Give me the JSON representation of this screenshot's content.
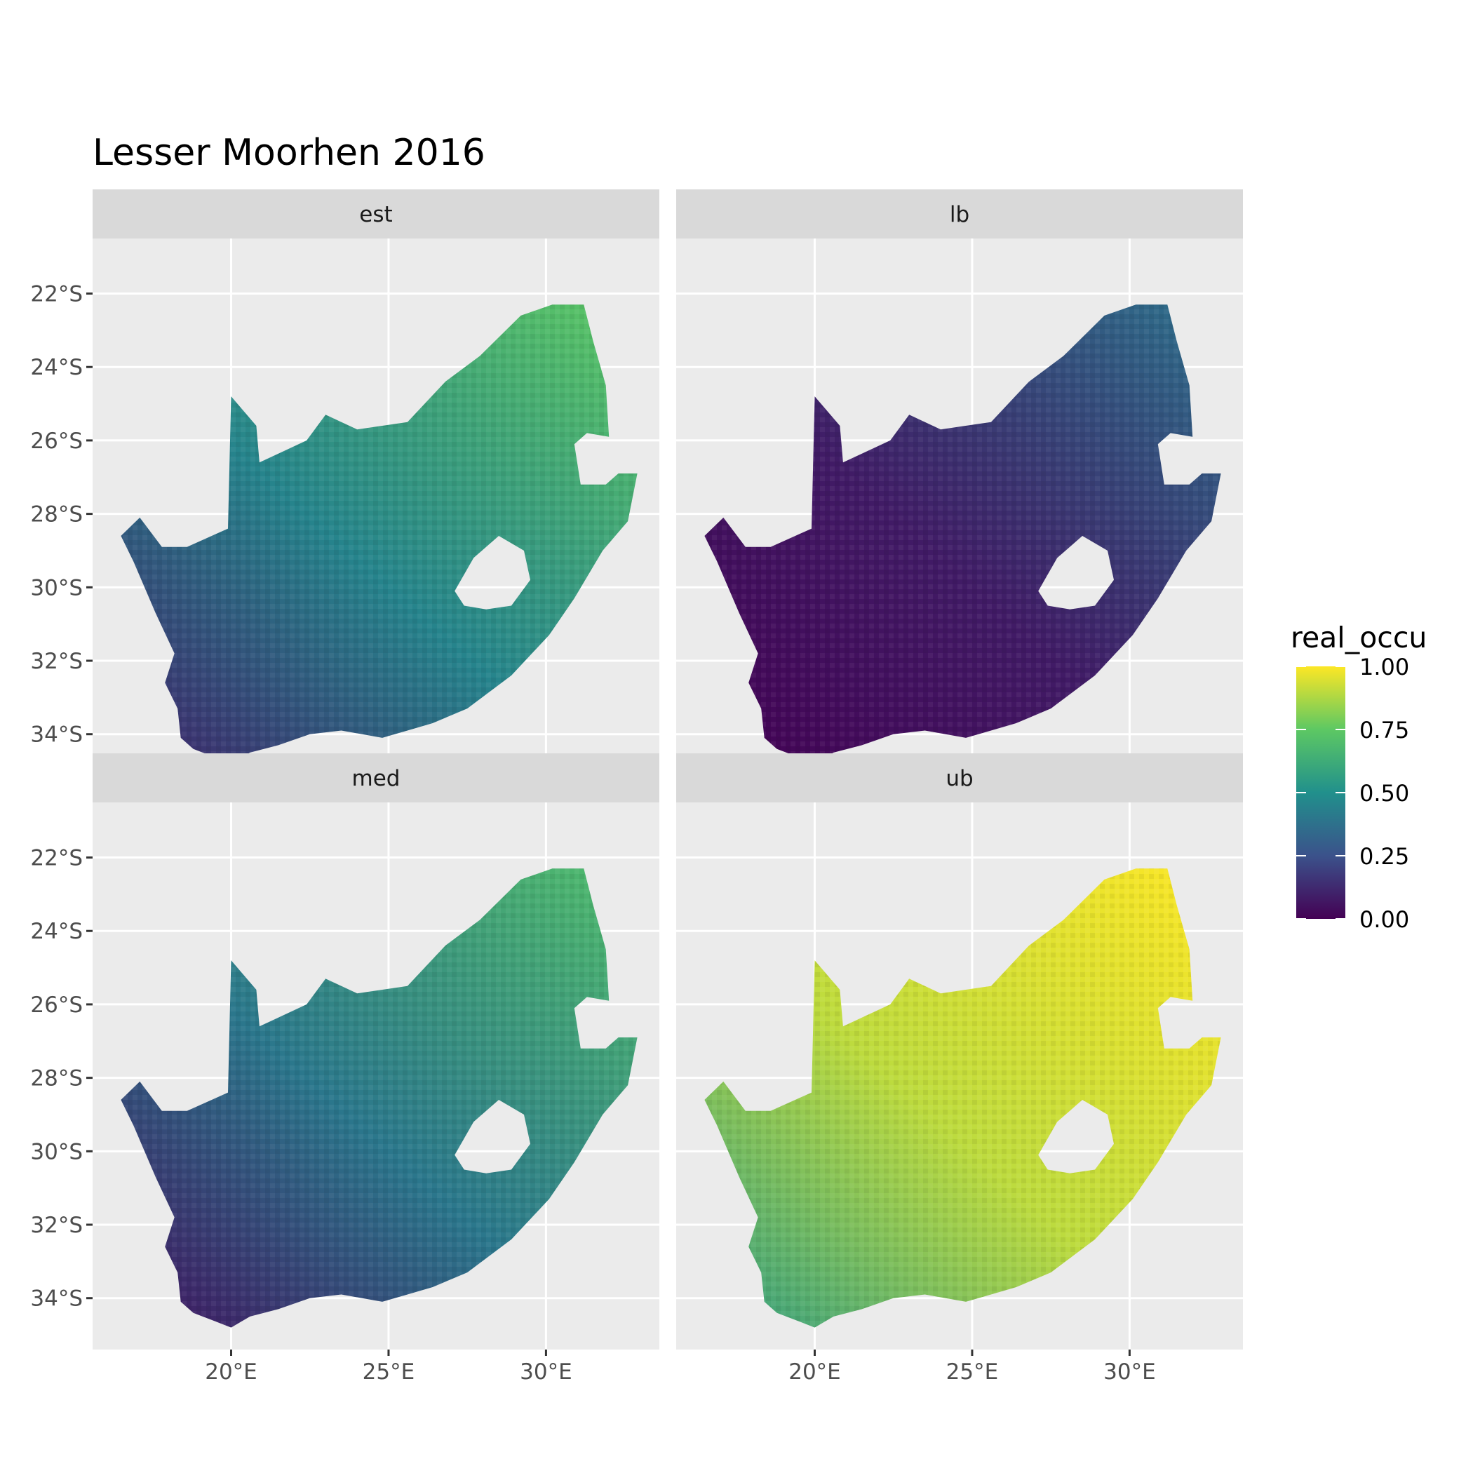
{
  "title": "Lesser Moorhen 2016",
  "legend": {
    "title": "real_occu",
    "labels": [
      "1.00",
      "0.75",
      "0.50",
      "0.25",
      "0.00"
    ],
    "scale": "viridis",
    "range": [
      0,
      1
    ]
  },
  "colors": {
    "panel_bg": "#ebebeb",
    "strip_bg": "#d9d9d9",
    "grid": "#ffffff",
    "viridis": [
      "#440154",
      "#3b528b",
      "#21908c",
      "#5dc863",
      "#fde725"
    ]
  },
  "axes": {
    "x_ticks": [
      {
        "value": 20,
        "label": "20°E"
      },
      {
        "value": 25,
        "label": "25°E"
      },
      {
        "value": 30,
        "label": "30°E"
      }
    ],
    "y_ticks": [
      {
        "value": -22,
        "label": "22°S"
      },
      {
        "value": -24,
        "label": "24°S"
      },
      {
        "value": -26,
        "label": "26°S"
      },
      {
        "value": -28,
        "label": "28°S"
      },
      {
        "value": -30,
        "label": "30°S"
      },
      {
        "value": -32,
        "label": "32°S"
      },
      {
        "value": -34,
        "label": "34°S"
      }
    ],
    "x_range": [
      15.6,
      33.6
    ],
    "y_range": [
      -35.4,
      -20.5
    ]
  },
  "panels": [
    {
      "label": "est",
      "level": 0.45
    },
    {
      "label": "lb",
      "level": 0.08
    },
    {
      "label": "med",
      "level": 0.4
    },
    {
      "label": "ub",
      "level": 0.9
    }
  ]
}
